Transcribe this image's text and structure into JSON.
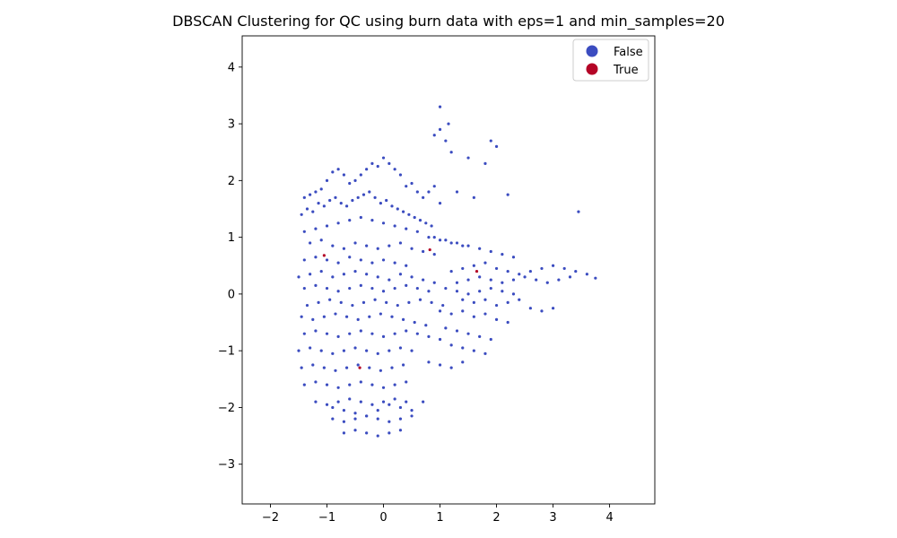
{
  "chart_data": {
    "type": "scatter",
    "title": "DBSCAN Clustering for QC using burn data with eps=1 and min_samples=20",
    "xlabel": "",
    "ylabel": "",
    "xlim": [
      -2.5,
      4.8
    ],
    "ylim": [
      -3.7,
      4.55
    ],
    "x_ticks": [
      -2,
      -1,
      0,
      1,
      2,
      3,
      4
    ],
    "y_ticks": [
      -3,
      -2,
      -1,
      0,
      1,
      2,
      3,
      4
    ],
    "grid": false,
    "legend_position": "top-right",
    "colors": {
      "False": "#3b4cc0",
      "True": "#b40426"
    },
    "series": [
      {
        "name": "False",
        "x": [
          -1.4,
          -1.3,
          -1.2,
          -1.1,
          -1.0,
          -0.9,
          -0.8,
          -0.7,
          -0.6,
          -0.5,
          -0.4,
          -0.3,
          -0.2,
          -0.1,
          0.0,
          0.1,
          0.2,
          0.3,
          0.4,
          0.5,
          0.6,
          0.7,
          0.8,
          0.9,
          1.0,
          -1.45,
          -1.35,
          -1.25,
          -1.15,
          -1.05,
          -0.95,
          -0.85,
          -0.75,
          -0.65,
          -0.55,
          -0.45,
          -0.35,
          -0.25,
          -0.15,
          -0.05,
          0.05,
          0.15,
          0.25,
          0.35,
          0.45,
          0.55,
          0.65,
          0.75,
          0.85,
          -1.4,
          -1.2,
          -1.0,
          -0.8,
          -0.6,
          -0.4,
          -0.2,
          0.0,
          0.2,
          0.4,
          0.6,
          0.8,
          1.0,
          1.2,
          1.4,
          -1.3,
          -1.1,
          -0.9,
          -0.7,
          -0.5,
          -0.3,
          -0.1,
          0.1,
          0.3,
          0.5,
          0.7,
          0.9,
          -1.4,
          -1.2,
          -1.0,
          -0.8,
          -0.6,
          -0.4,
          -0.2,
          0.0,
          0.2,
          0.4,
          -1.5,
          -1.3,
          -1.1,
          -0.9,
          -0.7,
          -0.5,
          -0.3,
          -0.1,
          0.1,
          0.3,
          0.5,
          0.7,
          0.9,
          -1.4,
          -1.2,
          -1.0,
          -0.8,
          -0.6,
          -0.4,
          -0.2,
          0.0,
          0.2,
          0.4,
          0.6,
          0.8,
          -1.35,
          -1.15,
          -0.95,
          -0.75,
          -0.55,
          -0.35,
          -0.15,
          0.05,
          0.25,
          0.45,
          0.65,
          0.85,
          1.05,
          -1.45,
          -1.25,
          -1.05,
          -0.85,
          -0.65,
          -0.45,
          -0.25,
          -0.05,
          0.15,
          0.35,
          0.55,
          0.75,
          -1.4,
          -1.2,
          -1.0,
          -0.8,
          -0.6,
          -0.4,
          -0.2,
          0.0,
          0.2,
          0.4,
          0.6,
          0.8,
          1.0,
          -1.5,
          -1.3,
          -1.1,
          -0.9,
          -0.7,
          -0.5,
          -0.3,
          -0.1,
          0.1,
          0.3,
          0.5,
          -1.45,
          -1.25,
          -1.05,
          -0.85,
          -0.65,
          -0.45,
          -0.25,
          -0.05,
          0.15,
          0.35,
          -1.4,
          -1.2,
          -1.0,
          -0.8,
          -0.6,
          -0.4,
          -0.2,
          0.0,
          0.2,
          0.4,
          -1.2,
          -1.0,
          -0.8,
          -0.6,
          -0.4,
          -0.2,
          0.0,
          0.2,
          0.4,
          -0.9,
          -0.7,
          -0.5,
          -0.3,
          -0.1,
          0.1,
          0.3,
          0.5,
          -0.7,
          -0.5,
          -0.3,
          -0.1,
          0.1,
          0.3,
          -0.9,
          -0.7,
          -0.5,
          -0.3,
          -0.1,
          0.1,
          0.3,
          0.5,
          0.7,
          1.2,
          1.4,
          1.6,
          1.8,
          2.0,
          2.2,
          2.4,
          2.6,
          2.8,
          3.0,
          3.2,
          3.4,
          3.6,
          3.75,
          1.3,
          1.5,
          1.7,
          1.9,
          2.1,
          2.3,
          2.5,
          2.7,
          2.9,
          3.1,
          3.3,
          1.1,
          1.3,
          1.5,
          1.7,
          1.9,
          2.1,
          2.3,
          1.4,
          1.6,
          1.8,
          2.0,
          2.2,
          2.4,
          2.6,
          2.8,
          3.0,
          1.0,
          1.2,
          1.4,
          1.6,
          1.8,
          2.0,
          2.2,
          1.1,
          1.3,
          1.5,
          1.7,
          1.9,
          1.2,
          1.4,
          1.6,
          1.8,
          0.9,
          1.1,
          1.3,
          1.5,
          1.7,
          1.9,
          2.1,
          2.3,
          0.8,
          1.0,
          1.2,
          1.4,
          1.0,
          1.1,
          1.2,
          1.5,
          1.8,
          2.0,
          1.9,
          2.2,
          1.3,
          1.6,
          3.45,
          0.9,
          1.0,
          1.15
        ],
        "y": [
          1.7,
          1.75,
          1.8,
          1.85,
          2.0,
          2.15,
          2.2,
          2.1,
          1.95,
          2.0,
          2.1,
          2.2,
          2.3,
          2.25,
          2.4,
          2.3,
          2.2,
          2.1,
          1.9,
          1.95,
          1.8,
          1.7,
          1.8,
          1.9,
          1.6,
          1.4,
          1.5,
          1.45,
          1.6,
          1.55,
          1.65,
          1.7,
          1.6,
          1.55,
          1.65,
          1.7,
          1.75,
          1.8,
          1.7,
          1.6,
          1.65,
          1.55,
          1.5,
          1.45,
          1.4,
          1.35,
          1.3,
          1.25,
          1.2,
          1.1,
          1.15,
          1.2,
          1.25,
          1.3,
          1.35,
          1.3,
          1.25,
          1.2,
          1.15,
          1.1,
          1.0,
          0.95,
          0.9,
          0.85,
          0.9,
          0.95,
          0.85,
          0.8,
          0.9,
          0.85,
          0.8,
          0.85,
          0.9,
          0.8,
          0.75,
          0.7,
          0.6,
          0.65,
          0.6,
          0.55,
          0.65,
          0.6,
          0.55,
          0.6,
          0.55,
          0.5,
          0.3,
          0.35,
          0.4,
          0.3,
          0.35,
          0.4,
          0.35,
          0.3,
          0.25,
          0.35,
          0.3,
          0.25,
          0.2,
          0.1,
          0.15,
          0.1,
          0.05,
          0.1,
          0.15,
          0.1,
          0.05,
          0.1,
          0.15,
          0.1,
          0.05,
          -0.2,
          -0.15,
          -0.1,
          -0.15,
          -0.2,
          -0.15,
          -0.1,
          -0.15,
          -0.2,
          -0.15,
          -0.1,
          -0.15,
          -0.2,
          -0.4,
          -0.45,
          -0.4,
          -0.35,
          -0.4,
          -0.45,
          -0.4,
          -0.35,
          -0.4,
          -0.45,
          -0.5,
          -0.55,
          -0.7,
          -0.65,
          -0.7,
          -0.75,
          -0.7,
          -0.65,
          -0.7,
          -0.75,
          -0.7,
          -0.65,
          -0.7,
          -0.75,
          -0.8,
          -1.0,
          -0.95,
          -1.0,
          -1.05,
          -1.0,
          -0.95,
          -1.0,
          -1.05,
          -1.0,
          -0.95,
          -1.0,
          -1.3,
          -1.25,
          -1.3,
          -1.35,
          -1.3,
          -1.25,
          -1.3,
          -1.35,
          -1.3,
          -1.25,
          -1.6,
          -1.55,
          -1.6,
          -1.65,
          -1.6,
          -1.55,
          -1.6,
          -1.65,
          -1.6,
          -1.55,
          -1.9,
          -1.95,
          -1.9,
          -1.85,
          -1.9,
          -1.95,
          -1.9,
          -1.85,
          -1.9,
          -2.2,
          -2.25,
          -2.2,
          -2.15,
          -2.2,
          -2.25,
          -2.2,
          -2.15,
          -2.45,
          -2.4,
          -2.45,
          -2.5,
          -2.45,
          -2.4,
          -2.0,
          -2.05,
          -2.1,
          -2.15,
          -2.05,
          -1.95,
          -2.0,
          -2.05,
          -1.9,
          0.4,
          0.45,
          0.5,
          0.55,
          0.45,
          0.4,
          0.35,
          0.4,
          0.45,
          0.5,
          0.45,
          0.4,
          0.35,
          0.28,
          0.2,
          0.25,
          0.3,
          0.25,
          0.2,
          0.25,
          0.3,
          0.25,
          0.2,
          0.25,
          0.3,
          0.1,
          0.05,
          0.0,
          0.05,
          0.1,
          0.05,
          0.0,
          -0.1,
          -0.15,
          -0.1,
          -0.2,
          -0.15,
          -0.1,
          -0.25,
          -0.3,
          -0.25,
          -0.3,
          -0.35,
          -0.3,
          -0.4,
          -0.35,
          -0.45,
          -0.5,
          -0.6,
          -0.65,
          -0.7,
          -0.75,
          -0.8,
          -0.9,
          -0.95,
          -1.0,
          -1.05,
          1.0,
          0.95,
          0.9,
          0.85,
          0.8,
          0.75,
          0.7,
          0.65,
          -1.2,
          -1.25,
          -1.3,
          -1.2,
          2.9,
          2.7,
          2.5,
          2.4,
          2.3,
          2.6,
          2.7,
          1.75,
          1.8,
          1.7,
          1.45,
          2.8,
          3.3,
          3.0
        ]
      },
      {
        "name": "True",
        "x": [
          -1.05,
          0.82,
          1.65,
          -0.42
        ],
        "y": [
          0.68,
          0.78,
          0.4,
          -1.3
        ]
      }
    ]
  }
}
